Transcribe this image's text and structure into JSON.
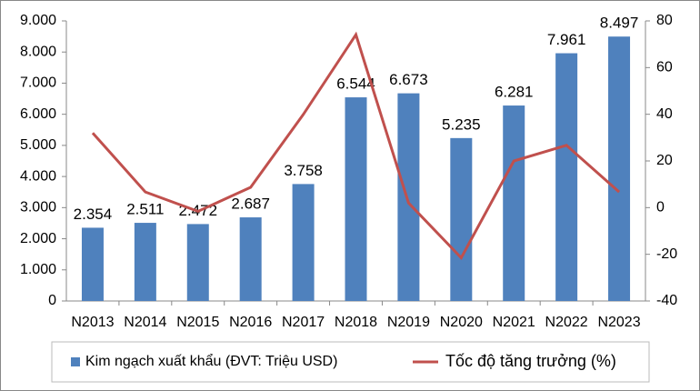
{
  "chart_data": {
    "type": "bar-line",
    "categories": [
      "N2013",
      "N2014",
      "N2015",
      "N2016",
      "N2017",
      "N2018",
      "N2019",
      "N2020",
      "N2021",
      "N2022",
      "N2023"
    ],
    "series": [
      {
        "name": "Kim ngạch xuất khẩu (ĐVT: Triệu USD)",
        "type": "bar",
        "color": "#4f81bd",
        "values": [
          2354,
          2511,
          2472,
          2687,
          3758,
          6544,
          6673,
          5235,
          6281,
          7961,
          8497
        ],
        "value_labels": [
          "2.354",
          "2.511",
          "2.472",
          "2.687",
          "3.758",
          "6.544",
          "6.673",
          "5.235",
          "6.281",
          "7.961",
          "8.497"
        ]
      },
      {
        "name": "Tốc độ tăng trưởng (%)",
        "type": "line",
        "axis": "y2",
        "color": "#c0504d",
        "values": [
          32,
          6.7,
          -1.6,
          8.7,
          39.9,
          74.1,
          2.0,
          -21.5,
          20.0,
          26.7,
          6.7
        ]
      }
    ],
    "ylim": [
      0,
      9000
    ],
    "yticks": [
      0,
      {
        "value": 1000,
        "label": "1.000"
      },
      {
        "value": 2000,
        "label": "2.000"
      },
      {
        "value": 3000,
        "label": "3.000"
      },
      {
        "value": 4000,
        "label": "4.000"
      },
      {
        "value": 5000,
        "label": "5.000"
      },
      {
        "value": 6000,
        "label": "6.000"
      },
      {
        "value": 7000,
        "label": "7.000"
      },
      {
        "value": 8000,
        "label": "8.000"
      },
      {
        "value": 9000,
        "label": "9.000"
      }
    ],
    "y2lim": [
      -40,
      80
    ],
    "y2ticks": [
      -40,
      -20,
      0,
      20,
      40,
      60,
      80
    ],
    "grid": false,
    "legend": "bottom"
  }
}
